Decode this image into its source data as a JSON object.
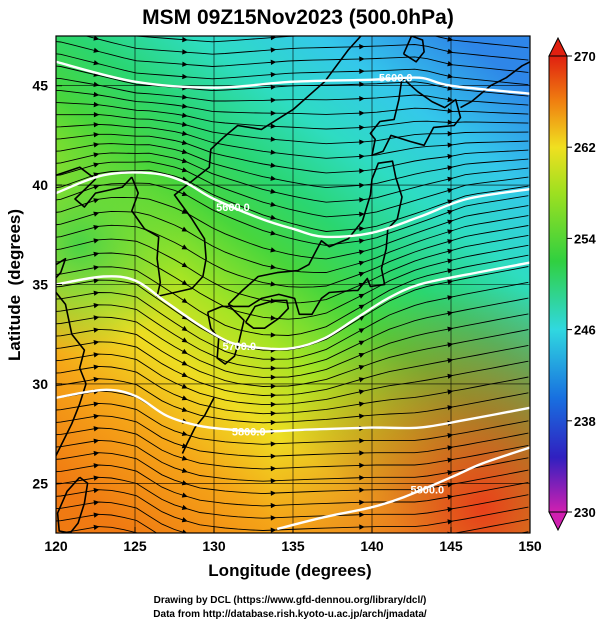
{
  "title": "MSM 09Z15Nov2023 (500.0hPa)",
  "x_axis": {
    "label": "Longitude (degrees)",
    "ticks": [
      "120",
      "125",
      "130",
      "135",
      "140",
      "145",
      "150"
    ]
  },
  "y_axis": {
    "label": "Latitude  (degrees)",
    "ticks": [
      "25",
      "30",
      "35",
      "40",
      "45"
    ]
  },
  "colorbar": {
    "ticks": [
      "270",
      "262",
      "254",
      "246",
      "238",
      "230"
    ],
    "colors": [
      "#d020b0",
      "#3020c0",
      "#1870e0",
      "#30d8e0",
      "#30d040",
      "#9ee020",
      "#f0e020",
      "#f08010",
      "#e02010"
    ]
  },
  "contour_labels": [
    "5600.0",
    "5600.0",
    "5700.0",
    "5800.0",
    "5800.0"
  ],
  "credits": {
    "line1": "Drawing by DCL (https://www.gfd-dennou.org/library/dcl/)",
    "line2": "Data from http://database.rish.kyoto-u.ac.jp/arch/jmadata/"
  },
  "chart_data": {
    "type": "heatmap",
    "title": "MSM 09Z15Nov2023 (500.0hPa)",
    "xlabel": "Longitude (degrees)",
    "ylabel": "Latitude  (degrees)",
    "xlim": [
      120,
      150
    ],
    "ylim": [
      22.5,
      47.5
    ],
    "x_ticks": [
      120,
      125,
      130,
      135,
      140,
      145,
      150
    ],
    "y_ticks": [
      25,
      30,
      35,
      40,
      45
    ],
    "colorbar_range": [
      230,
      270
    ],
    "colorbar_ticks": [
      230,
      238,
      246,
      254,
      262,
      270
    ],
    "contours": [
      {
        "label": "5600.0",
        "points": [
          [
            120,
            46.2
          ],
          [
            125,
            45.2
          ],
          [
            130,
            44.9
          ],
          [
            135,
            45.2
          ],
          [
            140,
            45.3
          ],
          [
            143,
            45.4
          ],
          [
            145,
            45.0
          ],
          [
            150,
            44.6
          ]
        ]
      },
      {
        "label": "5600.0",
        "points": [
          [
            120,
            39.6
          ],
          [
            123,
            40.5
          ],
          [
            126,
            40.6
          ],
          [
            128,
            40.2
          ],
          [
            130,
            39.3
          ],
          [
            133,
            38.3
          ],
          [
            135,
            37.8
          ],
          [
            137,
            37.4
          ],
          [
            140,
            37.6
          ],
          [
            143,
            38.4
          ],
          [
            146,
            39.3
          ],
          [
            150,
            39.8
          ]
        ]
      },
      {
        "label": "5700.0",
        "points": [
          [
            120,
            35.0
          ],
          [
            123,
            35.4
          ],
          [
            125,
            35.2
          ],
          [
            127,
            34.1
          ],
          [
            129,
            33.0
          ],
          [
            131,
            32.1
          ],
          [
            133,
            31.8
          ],
          [
            135,
            31.8
          ],
          [
            137,
            32.3
          ],
          [
            139,
            33.3
          ],
          [
            141,
            34.3
          ],
          [
            143,
            35.0
          ],
          [
            146,
            35.5
          ],
          [
            150,
            36.1
          ]
        ]
      },
      {
        "label": "5800.0",
        "points": [
          [
            120,
            29.3
          ],
          [
            123,
            29.7
          ],
          [
            125,
            29.4
          ],
          [
            127,
            28.4
          ],
          [
            129,
            27.9
          ],
          [
            131,
            27.7
          ],
          [
            133,
            27.6
          ],
          [
            136,
            27.7
          ],
          [
            140,
            27.8
          ],
          [
            143,
            27.8
          ],
          [
            146,
            28.2
          ],
          [
            150,
            28.8
          ]
        ]
      },
      {
        "label": "5800.0",
        "points": [
          [
            134,
            22.7
          ],
          [
            137,
            23.3
          ],
          [
            140,
            23.8
          ],
          [
            142,
            24.3
          ],
          [
            145,
            25.3
          ],
          [
            147,
            26.0
          ],
          [
            150,
            26.8
          ]
        ]
      }
    ],
    "streamlines": "westerly flow across the domain, parallel to the contours"
  }
}
